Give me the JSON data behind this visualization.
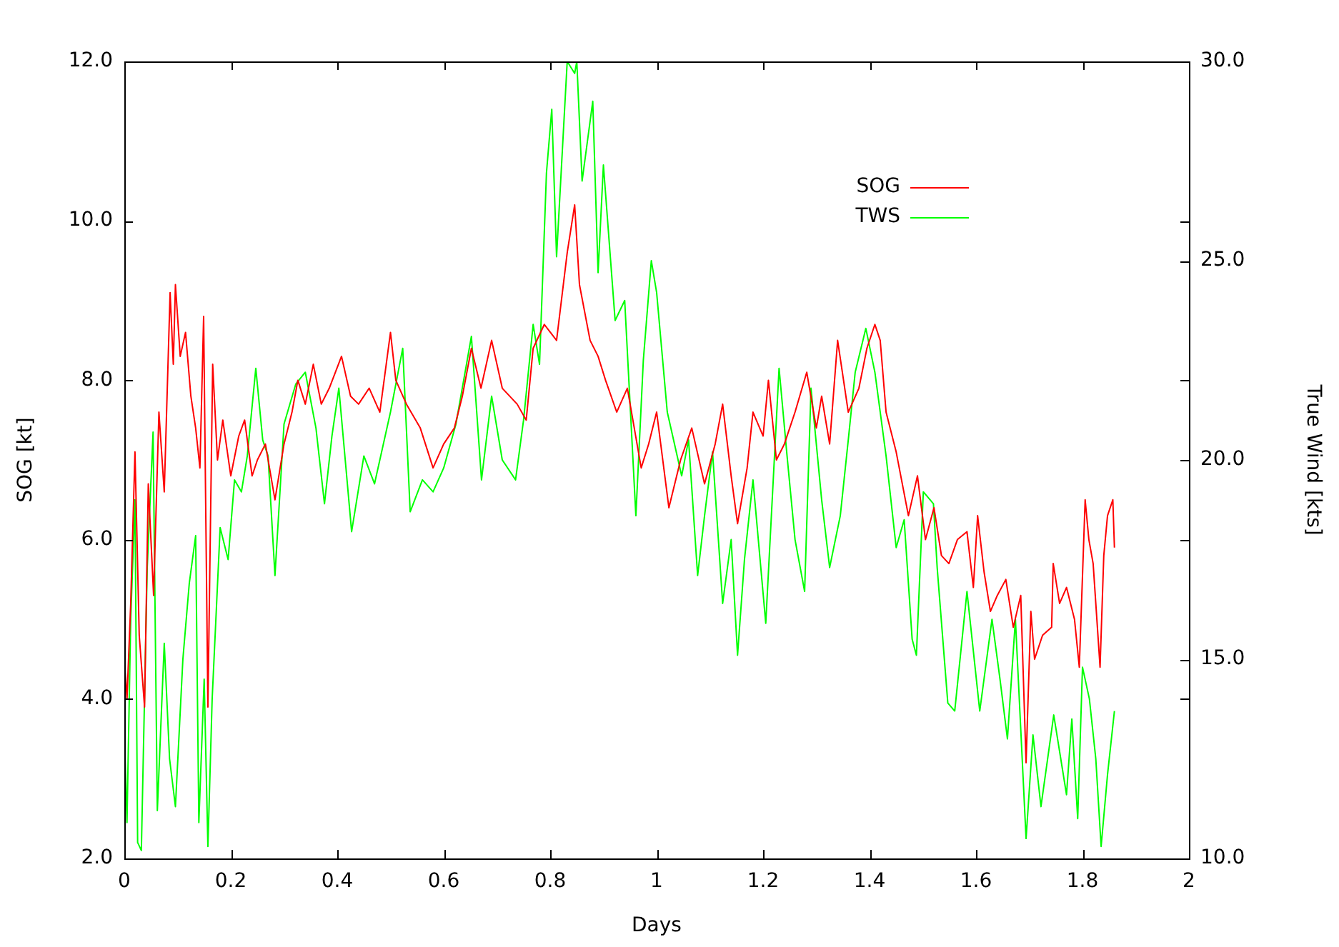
{
  "chart_data": {
    "type": "line",
    "xlabel": "Days",
    "ylabel": "SOG [kt]",
    "y2label": "True Wind [kts]",
    "xlim": [
      0,
      2
    ],
    "xticks": [
      0,
      0.2,
      0.4,
      0.6,
      0.8,
      1,
      1.2,
      1.4,
      1.6,
      1.8,
      2
    ],
    "ylim": [
      2,
      12
    ],
    "yticks": [
      {
        "value": 2,
        "label": "2.0"
      },
      {
        "value": 4,
        "label": "4.0"
      },
      {
        "value": 6,
        "label": "6.0"
      },
      {
        "value": 8,
        "label": "8.0"
      },
      {
        "value": 10,
        "label": "10.0"
      },
      {
        "value": 12,
        "label": "12.0"
      }
    ],
    "y2lim": [
      10,
      30
    ],
    "y2ticks": [
      {
        "value": 10,
        "label": "10.0"
      },
      {
        "value": 15,
        "label": "15.0"
      },
      {
        "value": 20,
        "label": "20.0"
      },
      {
        "value": 25,
        "label": "25.0"
      },
      {
        "value": 30,
        "label": "30.0"
      }
    ],
    "legend": "top right",
    "series": [
      {
        "name": "SOG",
        "color": "#ff0000",
        "x": [
          0,
          0.005,
          0.012,
          0.02,
          0.028,
          0.038,
          0.045,
          0.055,
          0.065,
          0.075,
          0.086,
          0.092,
          0.096,
          0.105,
          0.115,
          0.125,
          0.134,
          0.142,
          0.149,
          0.157,
          0.166,
          0.175,
          0.185,
          0.2,
          0.215,
          0.226,
          0.24,
          0.25,
          0.265,
          0.283,
          0.3,
          0.315,
          0.326,
          0.34,
          0.355,
          0.37,
          0.385,
          0.408,
          0.425,
          0.44,
          0.46,
          0.48,
          0.5,
          0.51,
          0.53,
          0.556,
          0.58,
          0.6,
          0.62,
          0.635,
          0.652,
          0.67,
          0.69,
          0.71,
          0.738,
          0.755,
          0.768,
          0.789,
          0.812,
          0.832,
          0.846,
          0.855,
          0.875,
          0.89,
          0.904,
          0.925,
          0.945,
          0.971,
          0.985,
          1,
          1.023,
          1.045,
          1.066,
          1.09,
          1.11,
          1.124,
          1.14,
          1.152,
          1.17,
          1.181,
          1.2,
          1.21,
          1.225,
          1.24,
          1.26,
          1.282,
          1.3,
          1.31,
          1.325,
          1.34,
          1.36,
          1.38,
          1.395,
          1.41,
          1.42,
          1.431,
          1.45,
          1.473,
          1.49,
          1.505,
          1.521,
          1.535,
          1.549,
          1.565,
          1.583,
          1.595,
          1.603,
          1.615,
          1.627,
          1.64,
          1.656,
          1.67,
          1.684,
          1.694,
          1.703,
          1.71,
          1.725,
          1.742,
          1.745,
          1.757,
          1.77,
          1.785,
          1.794,
          1.805,
          1.812,
          1.82,
          1.833,
          1.84,
          1.847,
          1.857,
          1.86
        ],
        "values": [
          4.5,
          4.0,
          5.2,
          7.1,
          4.8,
          3.9,
          6.7,
          5.3,
          7.6,
          6.6,
          9.1,
          8.2,
          9.2,
          8.3,
          8.6,
          7.8,
          7.4,
          6.9,
          8.8,
          3.9,
          8.2,
          7.0,
          7.5,
          6.8,
          7.3,
          7.5,
          6.8,
          7.0,
          7.2,
          6.5,
          7.2,
          7.6,
          8.0,
          7.7,
          8.2,
          7.7,
          7.9,
          8.3,
          7.8,
          7.7,
          7.9,
          7.6,
          8.6,
          8.0,
          7.7,
          7.4,
          6.9,
          7.2,
          7.4,
          7.8,
          8.4,
          7.9,
          8.5,
          7.9,
          7.7,
          7.5,
          8.4,
          8.7,
          8.5,
          9.6,
          10.2,
          9.2,
          8.5,
          8.3,
          8.0,
          7.6,
          7.9,
          6.9,
          7.2,
          7.6,
          6.4,
          7.0,
          7.4,
          6.7,
          7.2,
          7.7,
          6.8,
          6.2,
          6.9,
          7.6,
          7.3,
          8.0,
          7.0,
          7.2,
          7.6,
          8.1,
          7.4,
          7.8,
          7.2,
          8.5,
          7.6,
          7.9,
          8.4,
          8.7,
          8.5,
          7.6,
          7.1,
          6.3,
          6.8,
          6.0,
          6.4,
          5.8,
          5.7,
          6.0,
          6.1,
          5.4,
          6.3,
          5.6,
          5.1,
          5.3,
          5.5,
          4.9,
          5.3,
          3.2,
          5.1,
          4.5,
          4.8,
          4.9,
          5.7,
          5.2,
          5.4,
          5.0,
          4.4,
          6.5,
          6.0,
          5.7,
          4.4,
          5.8,
          6.3,
          6.5,
          5.9
        ]
      },
      {
        "name": "TWS",
        "color": "#00ff00",
        "axis": "y2",
        "x": [
          0,
          0.005,
          0.012,
          0.02,
          0.025,
          0.032,
          0.043,
          0.054,
          0.062,
          0.075,
          0.085,
          0.096,
          0.11,
          0.122,
          0.134,
          0.14,
          0.15,
          0.157,
          0.165,
          0.172,
          0.18,
          0.195,
          0.207,
          0.22,
          0.231,
          0.247,
          0.26,
          0.27,
          0.283,
          0.3,
          0.322,
          0.34,
          0.36,
          0.376,
          0.39,
          0.403,
          0.415,
          0.427,
          0.45,
          0.47,
          0.5,
          0.523,
          0.537,
          0.56,
          0.58,
          0.6,
          0.623,
          0.652,
          0.671,
          0.69,
          0.71,
          0.735,
          0.75,
          0.768,
          0.78,
          0.793,
          0.803,
          0.812,
          0.832,
          0.846,
          0.85,
          0.86,
          0.88,
          0.89,
          0.9,
          0.922,
          0.94,
          0.961,
          0.975,
          0.99,
          1,
          1.02,
          1.047,
          1.06,
          1.077,
          1.09,
          1.105,
          1.124,
          1.14,
          1.152,
          1.165,
          1.181,
          1.205,
          1.23,
          1.245,
          1.26,
          1.278,
          1.29,
          1.31,
          1.325,
          1.345,
          1.36,
          1.373,
          1.393,
          1.41,
          1.431,
          1.45,
          1.465,
          1.48,
          1.488,
          1.501,
          1.52,
          1.527,
          1.547,
          1.56,
          1.583,
          1.607,
          1.63,
          1.645,
          1.659,
          1.674,
          1.694,
          1.707,
          1.722,
          1.746,
          1.77,
          1.78,
          1.791,
          1.8,
          1.813,
          1.825,
          1.835,
          1.847,
          1.86
        ],
        "values": [
          13.2,
          10.9,
          16.0,
          19.0,
          10.4,
          10.2,
          17.3,
          20.7,
          11.2,
          15.4,
          12.5,
          11.3,
          15.0,
          16.9,
          18.1,
          10.9,
          14.5,
          10.3,
          14.0,
          16.0,
          18.3,
          17.5,
          19.5,
          19.2,
          20.1,
          22.3,
          20.5,
          20.1,
          17.1,
          20.9,
          21.9,
          22.2,
          20.8,
          18.9,
          20.6,
          21.8,
          20.0,
          18.2,
          20.1,
          19.4,
          21.2,
          22.8,
          18.7,
          19.5,
          19.2,
          19.8,
          20.9,
          23.1,
          19.5,
          21.6,
          20.0,
          19.5,
          21.0,
          23.4,
          22.4,
          27.2,
          28.8,
          25.1,
          30.0,
          29.7,
          30.0,
          27.0,
          29.0,
          24.7,
          27.4,
          23.5,
          24.0,
          18.6,
          22.5,
          25.0,
          24.2,
          21.2,
          19.6,
          20.5,
          17.1,
          18.6,
          20.2,
          16.4,
          18.0,
          15.1,
          17.5,
          19.5,
          15.9,
          22.3,
          20.1,
          18.0,
          16.7,
          21.8,
          19.0,
          17.3,
          18.6,
          20.5,
          22.2,
          23.3,
          22.2,
          20.1,
          17.8,
          18.5,
          15.5,
          15.1,
          19.2,
          18.9,
          17.3,
          13.9,
          13.7,
          16.7,
          13.7,
          16.0,
          14.5,
          13.0,
          16.0,
          10.5,
          13.1,
          11.3,
          13.6,
          11.6,
          13.5,
          11.0,
          14.8,
          14.0,
          12.5,
          10.3,
          12.1,
          13.7
        ]
      }
    ]
  }
}
